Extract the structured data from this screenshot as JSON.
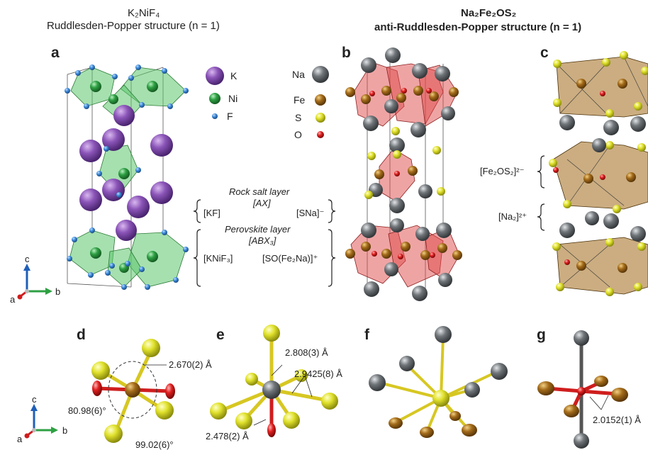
{
  "headers": {
    "left_formula": "K₂NiF₄",
    "left_title": "Ruddlesden-Popper structure (n = 1)",
    "right_formula": "Na₂Fe₂OS₂",
    "right_title": "anti-Ruddlesden-Popper structure (n = 1)"
  },
  "panels": [
    "a",
    "b",
    "c",
    "d",
    "e",
    "f",
    "g"
  ],
  "legend_a": [
    {
      "label": "K",
      "color": "#8b55b8"
    },
    {
      "label": "Ni",
      "color": "#2ea043"
    },
    {
      "label": "F",
      "color": "#3a86d6"
    }
  ],
  "legend_b": [
    {
      "label": "Na",
      "color": "#5f6468"
    },
    {
      "label": "Fe",
      "color": "#a36b1a"
    },
    {
      "label": "S",
      "color": "#e0e12c"
    },
    {
      "label": "O",
      "color": "#e02020"
    }
  ],
  "layers": {
    "rock_salt": "Rock salt layer",
    "rock_salt_formula": "[AX]",
    "kf": "[KF]",
    "sna": "[SNa]⁻",
    "perovskite": "Perovskite layer",
    "perovskite_formula": "[ABX₃]",
    "knif3": "[KNiF₃]",
    "so_fe2na": "[SO(Fe₂Na)]⁺",
    "fe2os2": "[Fe₂OS₂]²⁻",
    "na2": "[Na₂]²⁺"
  },
  "axes": {
    "a": "a",
    "b": "b",
    "c": "c"
  },
  "annotations": {
    "d_bond": "2.670(2) Å",
    "d_angle1": "80.98(6)°",
    "d_angle2": "99.02(6)°",
    "e_bond1": "2.808(3) Å",
    "e_bond2": "2.9425(8) Å",
    "e_bond3": "2.478(2) Å",
    "g_bond": "2.0152(1) Å"
  }
}
